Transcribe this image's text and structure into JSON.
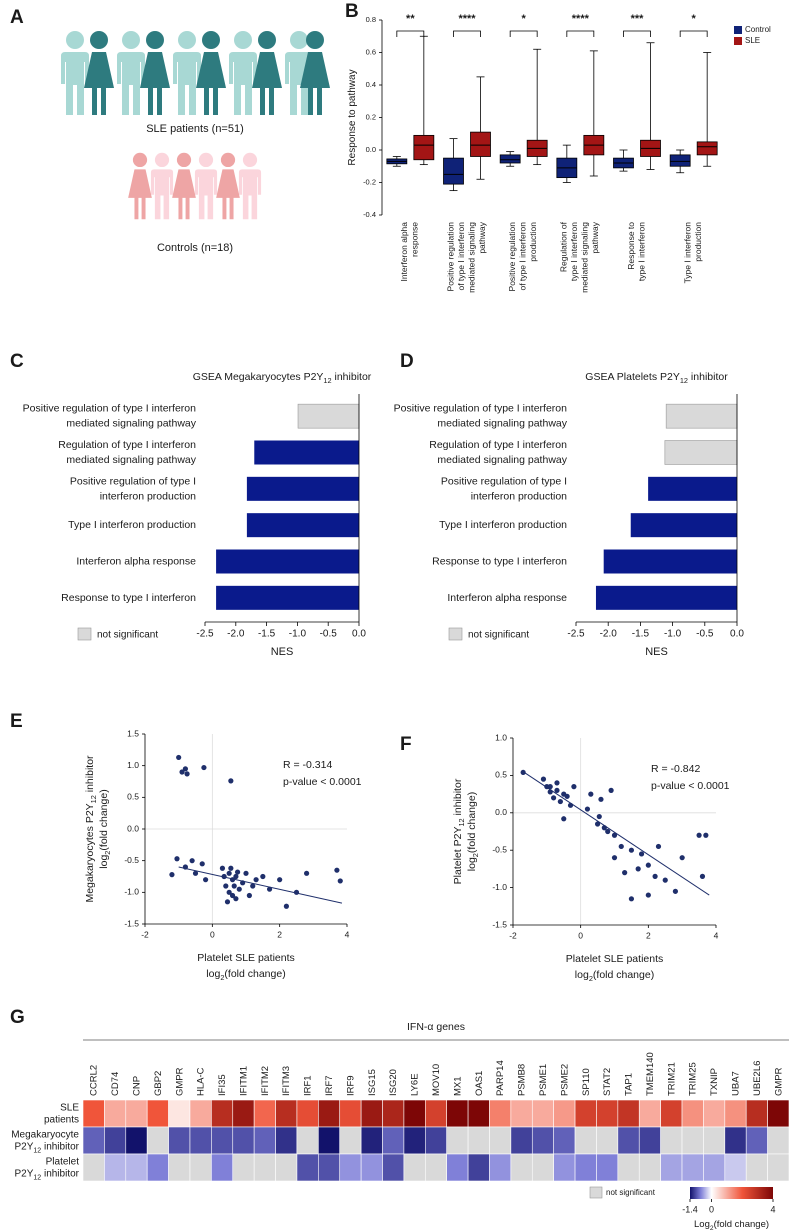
{
  "panel_labels": [
    "A",
    "B",
    "C",
    "D",
    "E",
    "F",
    "G"
  ],
  "panel_a": {
    "patients_label": "SLE patients (n=51)",
    "controls_label": "Controls (n=18)"
  },
  "chart_data": [
    {
      "type": "box",
      "y_label": "Response to pathway",
      "categories": [
        [
          "Interferon alpha",
          "response"
        ],
        [
          "Positive regulation",
          "of type I interferon",
          "mediated signaling",
          "pathway"
        ],
        [
          "Positive regulation",
          "of type I interferon",
          "production"
        ],
        [
          "Regulation of",
          "type I interferon",
          "mediated signaling",
          "pathway"
        ],
        [
          "Response to",
          "type I interferon"
        ],
        [
          "Type I interferon",
          "production"
        ]
      ],
      "significance": [
        "**",
        "****",
        "*",
        "****",
        "***",
        "*"
      ],
      "ylim": [
        -0.4,
        0.8
      ],
      "yticks": [
        -0.4,
        -0.2,
        {
          "value": 0,
          "label": "0.0"
        },
        0.2,
        0.4,
        0.6,
        0.8
      ],
      "legend": "upper right",
      "series": [
        {
          "name": "Control",
          "color": "#0f2277",
          "min": [
            -0.1,
            -0.25,
            -0.1,
            -0.2,
            -0.13,
            -0.14
          ],
          "q1": [
            -0.085,
            -0.21,
            -0.08,
            -0.17,
            -0.11,
            -0.1
          ],
          "median": [
            -0.07,
            -0.15,
            -0.06,
            -0.11,
            -0.08,
            -0.07
          ],
          "q3": [
            -0.055,
            -0.05,
            -0.03,
            -0.05,
            -0.05,
            -0.03
          ],
          "max": [
            -0.04,
            0.07,
            -0.01,
            0.03,
            0.0,
            0.0
          ]
        },
        {
          "name": "SLE",
          "color": "#a31515",
          "min": [
            -0.09,
            -0.18,
            -0.09,
            -0.16,
            -0.12,
            -0.1
          ],
          "q1": [
            -0.06,
            -0.04,
            -0.04,
            -0.03,
            -0.04,
            -0.03
          ],
          "median": [
            0.03,
            0.03,
            0.01,
            0.03,
            0.01,
            0.02
          ],
          "q3": [
            0.09,
            0.11,
            0.06,
            0.09,
            0.06,
            0.05
          ],
          "max": [
            0.7,
            0.45,
            0.62,
            0.61,
            0.66,
            0.6
          ]
        }
      ]
    },
    {
      "type": "barh",
      "title": [
        [
          "GSEA Megakaryocytes P2Y",
          "12",
          " inhibitor"
        ]
      ],
      "x_label": "NES",
      "categories": [
        [
          "Positive regulation of type I interferon",
          "mediated signaling pathway"
        ],
        [
          "Regulation of type I interferon",
          "mediated signaling pathway"
        ],
        [
          "Positive regulation of type I",
          "interferon production"
        ],
        "Type I interferon production",
        "Interferon alpha response",
        "Response to type I interferon"
      ],
      "values": [
        -0.99,
        -1.7,
        -1.82,
        -1.82,
        -2.32,
        -2.32
      ],
      "significant": [
        false,
        true,
        true,
        true,
        true,
        true
      ],
      "color": "#0a1a8c",
      "ns_color": "#d9d9d9",
      "ns_label": "not significant",
      "xlim": [
        -2.5,
        0
      ],
      "xticks": [
        -2.5,
        {
          "value": -2,
          "label": "-2.0"
        },
        -1.5,
        {
          "value": -1,
          "label": "-1.0"
        },
        -0.5,
        {
          "value": 0,
          "label": "0.0"
        }
      ]
    },
    {
      "type": "barh",
      "title": [
        [
          "GSEA Platelets P2Y",
          "12",
          " inhibitor"
        ]
      ],
      "x_label": "NES",
      "categories": [
        [
          "Positive regulation of type I interferon",
          "mediated signaling pathway"
        ],
        [
          "Regulation of type I interferon",
          "mediated signaling pathway"
        ],
        [
          "Positive regulation of type I",
          "interferon production"
        ],
        "Type I interferon production",
        "Response to type I interferon",
        "Interferon alpha response"
      ],
      "values": [
        -1.1,
        -1.12,
        -1.38,
        -1.65,
        -2.07,
        -2.19
      ],
      "significant": [
        false,
        false,
        true,
        true,
        true,
        true
      ],
      "color": "#0a1a8c",
      "ns_color": "#d9d9d9",
      "ns_label": "not significant",
      "xlim": [
        -2.5,
        0
      ],
      "xticks": [
        -2.5,
        {
          "value": -2,
          "label": "-2.0"
        },
        -1.5,
        {
          "value": -1,
          "label": "-1.0"
        },
        -0.5,
        {
          "value": 0,
          "label": "0.0"
        }
      ]
    },
    {
      "type": "scatter",
      "annotations": [
        "R = -0.314",
        "p-value < 0.0001"
      ],
      "x_label": [
        "Platelet SLE patients",
        [
          "log",
          "2",
          "(fold change)"
        ]
      ],
      "y_label": [
        [
          "Megakaryocytes P2Y",
          "12",
          " inhibitor"
        ],
        [
          "log",
          "2",
          "(fold change)"
        ]
      ],
      "x": [
        -1,
        -0.8,
        -0.9,
        -0.75,
        -0.25,
        0.55,
        -1.05,
        -0.6,
        -0.3,
        -0.5,
        -1.2,
        -0.8,
        0.3,
        0.5,
        0.6,
        0.4,
        0.7,
        0.8,
        0.5,
        0.6,
        0.9,
        1.0,
        1.2,
        1.3,
        1.5,
        1.7,
        2.0,
        2.2,
        2.5,
        2.8,
        3.8,
        3.7,
        0.45,
        0.7,
        1.1,
        -0.2,
        0.35,
        0.55,
        0.75,
        0.65
      ],
      "y": [
        1.13,
        0.95,
        0.9,
        0.87,
        0.97,
        0.76,
        -0.47,
        -0.5,
        -0.55,
        -0.7,
        -0.72,
        -0.6,
        -0.62,
        -0.7,
        -0.8,
        -0.9,
        -0.75,
        -0.95,
        -1.0,
        -1.05,
        -0.85,
        -0.7,
        -0.9,
        -0.8,
        -0.75,
        -0.95,
        -0.8,
        -1.22,
        -1.0,
        -0.7,
        -0.82,
        -0.65,
        -1.15,
        -1.1,
        -1.05,
        -0.8,
        -0.75,
        -0.62,
        -0.68,
        -0.9
      ],
      "fit": {
        "x": [
          -1,
          3.85
        ],
        "y": [
          -0.6,
          -1.17
        ]
      },
      "color": "#1f2f6b",
      "xlim": [
        -2,
        4
      ],
      "xticks": [
        -2,
        0,
        2,
        4
      ],
      "ylim": [
        -1.5,
        1.5
      ],
      "yticks": [
        -1.5,
        {
          "value": -1,
          "label": "-1.0"
        },
        -0.5,
        {
          "value": 0,
          "label": "0.0"
        },
        0.5,
        {
          "value": 1,
          "label": "1.0"
        },
        1.5
      ],
      "zero_lines": true
    },
    {
      "type": "scatter",
      "annotations": [
        "R = -0.842",
        "p-value < 0.0001"
      ],
      "x_label": [
        "Platelet SLE patients",
        [
          "log",
          "2",
          "(fold change)"
        ]
      ],
      "y_label": [
        [
          "Platelet P2Y",
          "12",
          " inhibitor"
        ],
        [
          "log",
          "2",
          "(fold change)"
        ]
      ],
      "x": [
        -1.7,
        -1.0,
        -0.9,
        -0.7,
        -0.5,
        -0.8,
        -0.6,
        -0.4,
        -1.1,
        -0.3,
        -0.5,
        0.3,
        0.6,
        0.9,
        0.5,
        0.7,
        0.8,
        1.0,
        1.2,
        1.5,
        1.8,
        2.0,
        2.2,
        2.5,
        2.0,
        1.5,
        3.0,
        3.5,
        3.7,
        3.6,
        2.8,
        1.3,
        -0.2,
        -0.7,
        0.55,
        1.0,
        1.7,
        2.3,
        0.2,
        -0.9
      ],
      "y": [
        0.54,
        0.35,
        0.28,
        0.3,
        0.25,
        0.2,
        0.15,
        0.22,
        0.45,
        0.1,
        -0.08,
        0.25,
        0.18,
        0.3,
        -0.15,
        -0.2,
        -0.25,
        -0.3,
        -0.45,
        -0.5,
        -0.55,
        -0.7,
        -0.85,
        -0.9,
        -1.1,
        -1.15,
        -0.6,
        -0.3,
        -0.3,
        -0.85,
        -1.05,
        -0.8,
        0.35,
        0.4,
        -0.05,
        -0.6,
        -0.75,
        -0.45,
        0.05,
        0.35
      ],
      "fit": {
        "x": [
          -1.7,
          3.8
        ],
        "y": [
          0.55,
          -1.1
        ]
      },
      "color": "#1f2f6b",
      "xlim": [
        -2,
        4
      ],
      "xticks": [
        -2,
        0,
        2,
        4
      ],
      "ylim": [
        -1.5,
        1
      ],
      "yticks": [
        -1.5,
        {
          "value": -1,
          "label": "-1.0"
        },
        -0.5,
        {
          "value": 0,
          "label": "0.0"
        },
        0.5,
        {
          "value": 1,
          "label": "1.0"
        }
      ],
      "zero_lines": true
    },
    {
      "type": "heatmap",
      "header": "IFN-α genes",
      "categories": [
        "CCRL2",
        "CD74",
        "CNP",
        "GBP2",
        "GMPR",
        "HLA-C",
        "IFI35",
        "IFITM1",
        "IFITM2",
        "IFITM3",
        "IRF1",
        "IRF7",
        "IRF9",
        "ISG15",
        "ISG20",
        "LY6E",
        "MOV10",
        "MX1",
        "OAS1",
        "PARP14",
        "PSMB8",
        "PSME1",
        "PSME2",
        "SP110",
        "STAT2",
        "TAP1",
        "TMEM140",
        "TRIM21",
        "TRIM25",
        "TXNIP",
        "UBA7",
        "UBE2L6",
        "GMPR"
      ],
      "rows": [
        [
          "SLE",
          "patients"
        ],
        [
          "Megakaryocyte",
          [
            "P2Y",
            "12",
            " inhibitor"
          ]
        ],
        [
          "Platelet",
          [
            "P2Y",
            "12",
            " inhibitor"
          ]
        ]
      ],
      "values": [
        [
          2.0,
          1.0,
          1.0,
          2.0,
          0.3,
          1.0,
          3.0,
          3.5,
          1.8,
          3.0,
          2.2,
          3.5,
          2.2,
          3.5,
          3.2,
          4.0,
          2.5,
          4.0,
          4.0,
          1.5,
          1.0,
          1.0,
          1.2,
          2.5,
          2.5,
          2.8,
          1.0,
          2.5,
          1.3,
          1.0,
          1.3,
          3.0,
          4.0
        ],
        [
          -0.9,
          -1.1,
          -1.4,
          null,
          -1.0,
          -1.0,
          -1.0,
          -1.0,
          -0.9,
          -1.2,
          null,
          -1.4,
          null,
          -1.3,
          -0.9,
          -1.3,
          -1.1,
          null,
          null,
          null,
          -1.1,
          -1.0,
          -0.9,
          null,
          null,
          -1.0,
          -1.1,
          null,
          null,
          null,
          -1.2,
          -0.9,
          null
        ],
        [
          null,
          -0.4,
          -0.4,
          -0.7,
          null,
          null,
          -0.7,
          null,
          null,
          null,
          -1.0,
          -1.0,
          -0.6,
          -0.6,
          -1.0,
          null,
          null,
          -0.7,
          -1.1,
          -0.6,
          null,
          null,
          -0.6,
          -0.7,
          -0.7,
          null,
          null,
          -0.5,
          -0.5,
          -0.5,
          -0.3,
          null,
          null
        ]
      ],
      "ns_color": "#d9d9d9",
      "ns_label": "not significant",
      "clim": [
        -1.4,
        4
      ],
      "cticks": [
        -1.4,
        0,
        4
      ],
      "colorbar_label": [
        [
          "Log",
          "2",
          "(fold change)"
        ]
      ],
      "neg_colors": [
        "#ffffff",
        "#8080d8",
        "#12126b"
      ],
      "pos_colors": [
        "#ffffff",
        "#f0553a",
        "#7d0606"
      ]
    }
  ]
}
